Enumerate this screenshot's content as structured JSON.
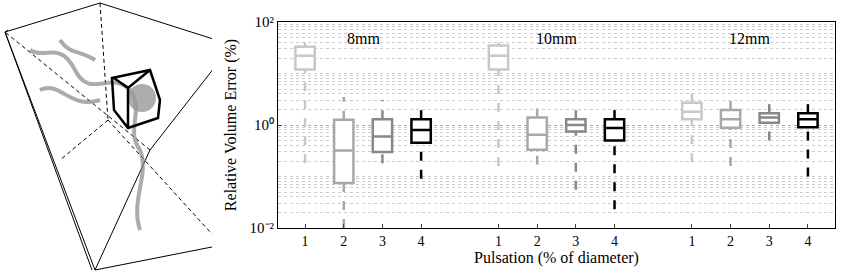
{
  "chart_data": {
    "type": "box",
    "xlabel": "Pulsation (% of diameter)",
    "ylabel": "Relative Volume Error (%)",
    "groups": [
      "8mm",
      "10mm",
      "12mm"
    ],
    "categories": [
      "1",
      "2",
      "3",
      "4"
    ],
    "series": [
      {
        "name": "1",
        "color": "#c8c8c8",
        "boxes": [
          {
            "min": 0.18,
            "q1": 12,
            "median": 22,
            "q3": 33,
            "max": 40
          },
          {
            "min": 0.16,
            "q1": 12,
            "median": 22,
            "q3": 35,
            "max": 40
          },
          {
            "min": 0.19,
            "q1": 1.3,
            "median": 1.8,
            "q3": 2.7,
            "max": 5.2
          }
        ]
      },
      {
        "name": "2",
        "color": "#a8a8a8",
        "boxes": [
          {
            "min": 0.01,
            "q1": 0.075,
            "median": 0.32,
            "q3": 1.26,
            "max": 3.5
          },
          {
            "min": 0.17,
            "q1": 0.33,
            "median": 0.65,
            "q3": 1.4,
            "max": 2.2
          },
          {
            "min": 0.16,
            "q1": 0.88,
            "median": 1.3,
            "q3": 1.95,
            "max": 3.8
          }
        ]
      },
      {
        "name": "3",
        "color": "#888888",
        "boxes": [
          {
            "min": 0.18,
            "q1": 0.3,
            "median": 0.6,
            "q3": 1.3,
            "max": 3.1
          },
          {
            "min": 0.055,
            "q1": 0.75,
            "median": 1.0,
            "q3": 1.3,
            "max": 2.7
          },
          {
            "min": 0.5,
            "q1": 1.1,
            "median": 1.4,
            "q3": 1.7,
            "max": 3.7
          }
        ]
      },
      {
        "name": "4",
        "color": "#000000",
        "boxes": [
          {
            "min": 0.09,
            "q1": 0.45,
            "median": 0.8,
            "q3": 1.3,
            "max": 2.5
          },
          {
            "min": 0.023,
            "q1": 0.5,
            "median": 0.87,
            "q3": 1.3,
            "max": 2.5
          },
          {
            "min": 0.1,
            "q1": 0.9,
            "median": 1.3,
            "q3": 1.7,
            "max": 3.6
          }
        ]
      }
    ],
    "log": "y",
    "grid": true,
    "ylim": [
      0.01,
      100
    ],
    "yticks": [
      {
        "value": 0.01,
        "label": "10⁻²"
      },
      {
        "value": 1,
        "label": "10⁰"
      },
      {
        "value": 100,
        "label": "10²"
      }
    ],
    "line_style": "dashed"
  }
}
